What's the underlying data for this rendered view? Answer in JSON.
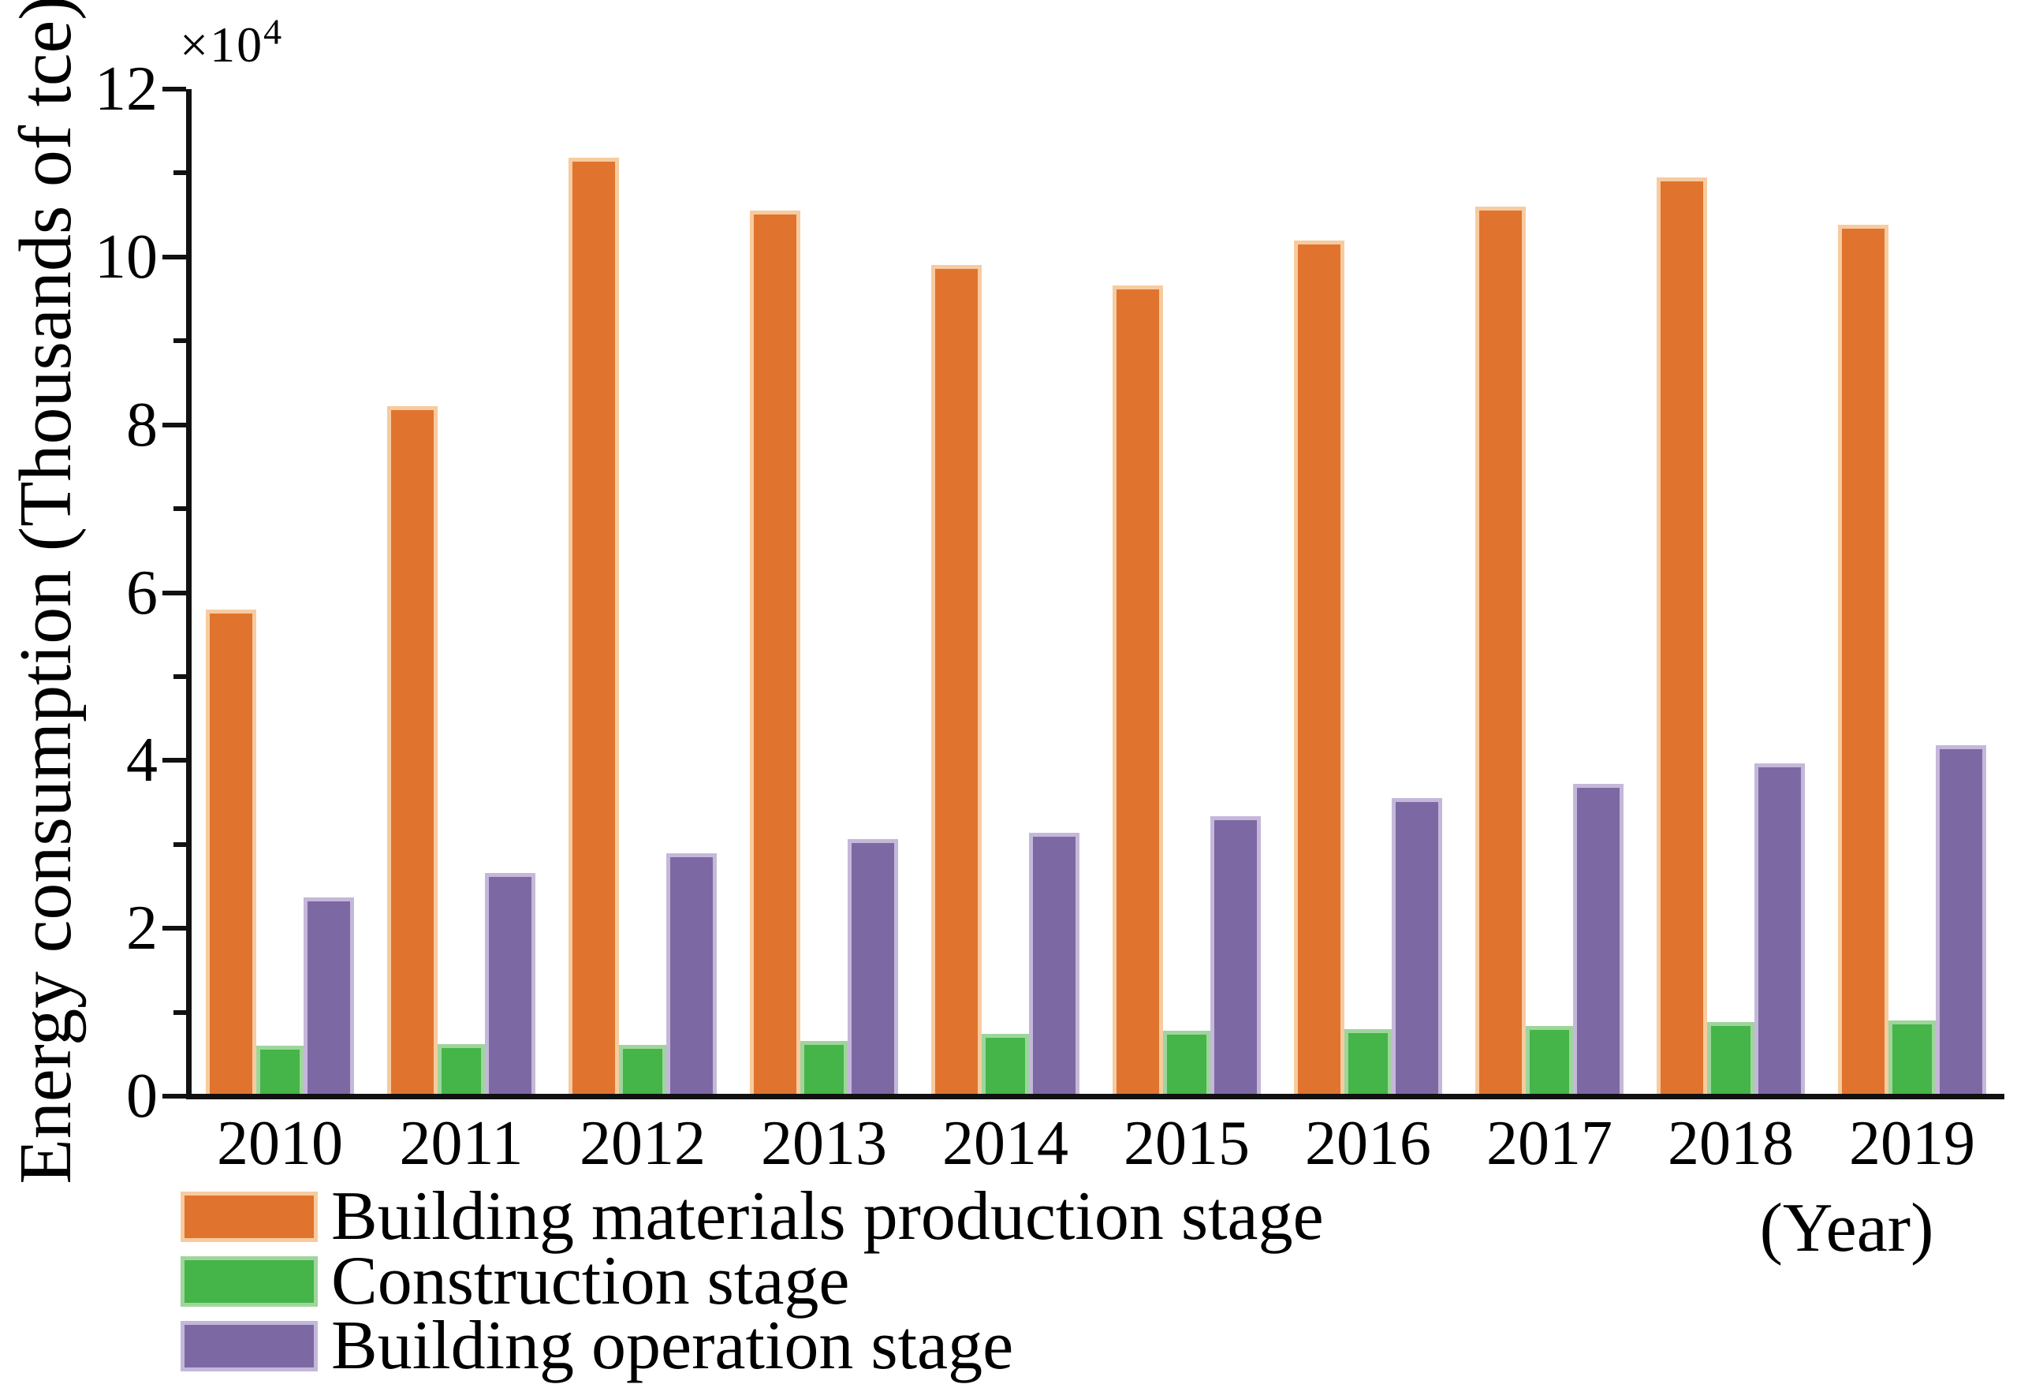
{
  "figure": {
    "offset_base": "×10",
    "offset_exp": "4"
  },
  "chart_data": {
    "type": "bar",
    "title": "",
    "xlabel": "(Year)",
    "ylabel": "Energy consumption (Thousands of tce)",
    "y_multiplier": "×10^4",
    "units": "Thousands of tce",
    "ylim": [
      0,
      12
    ],
    "y_major_ticks": [
      0,
      2,
      4,
      6,
      8,
      10,
      12
    ],
    "y_minor_ticks": [
      1,
      3,
      5,
      7,
      9,
      11
    ],
    "grid": false,
    "legend_position": "lower-left outside plot",
    "categories": [
      "2010",
      "2011",
      "2012",
      "2013",
      "2014",
      "2015",
      "2016",
      "2017",
      "2018",
      "2019"
    ],
    "series": [
      {
        "name": "Building materials production stage",
        "color": "#e0742e",
        "edge_color": "#f7cba0",
        "values": [
          5.8,
          8.22,
          11.18,
          10.55,
          9.9,
          9.66,
          10.2,
          10.6,
          10.95,
          10.38
        ]
      },
      {
        "name": "Construction stage",
        "color": "#45b449",
        "edge_color": "#9fd59c",
        "values": [
          0.6,
          0.62,
          0.61,
          0.66,
          0.74,
          0.78,
          0.8,
          0.84,
          0.88,
          0.9
        ]
      },
      {
        "name": "Building operation stage",
        "color": "#7c69a3",
        "edge_color": "#c4b8da",
        "values": [
          2.37,
          2.66,
          2.89,
          3.06,
          3.14,
          3.34,
          3.55,
          3.72,
          3.97,
          4.18
        ]
      }
    ]
  }
}
